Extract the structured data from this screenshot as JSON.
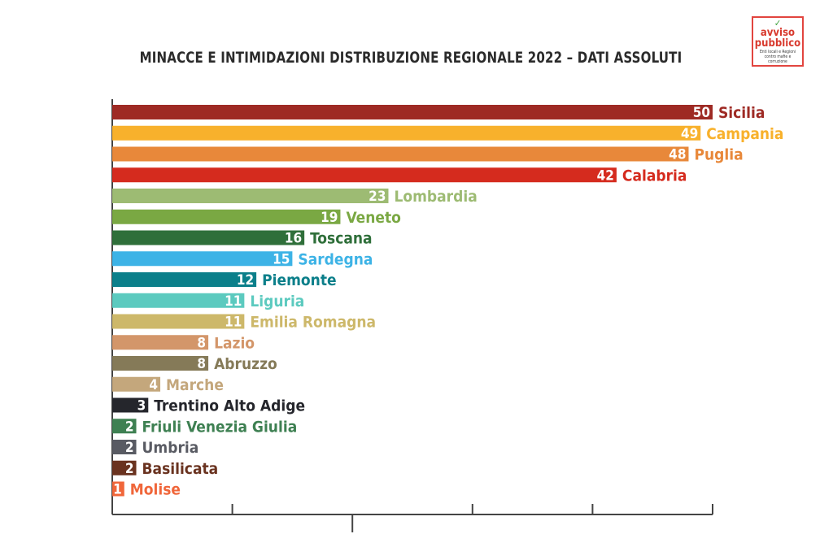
{
  "logo": {
    "line1": "avviso",
    "line2": "pubblico",
    "tagline": "Enti locali e Regioni contro mafie e corruzione"
  },
  "chart_data": {
    "type": "bar",
    "orientation": "horizontal",
    "title": "MINACCE E INTIMIDAZIONI DISTRIBUZIONE REGIONALE 2022 – DATI ASSOLUTI",
    "xlim": [
      0,
      50
    ],
    "grid": false,
    "categories": [
      "Sicilia",
      "Campania",
      "Puglia",
      "Calabria",
      "Lombardia",
      "Veneto",
      "Toscana",
      "Sardegna",
      "Piemonte",
      "Liguria",
      "Emilia Romagna",
      "Lazio",
      "Abruzzo",
      "Marche",
      "Trentino Alto Adige",
      "Friuli Venezia Giulia",
      "Umbria",
      "Basilicata",
      "Molise"
    ],
    "values": [
      50,
      49,
      48,
      42,
      23,
      19,
      16,
      15,
      12,
      11,
      11,
      8,
      8,
      4,
      3,
      2,
      2,
      2,
      1
    ],
    "colors": [
      "#9e2a24",
      "#f8b12c",
      "#e8883a",
      "#d52b1e",
      "#9dbb73",
      "#7aa843",
      "#2f6f3a",
      "#3db3e6",
      "#0b7f8a",
      "#5ccabf",
      "#cdb86a",
      "#d3966a",
      "#857a58",
      "#c4a77c",
      "#25262c",
      "#3e8052",
      "#595b63",
      "#6a3320",
      "#f0663a"
    ]
  }
}
